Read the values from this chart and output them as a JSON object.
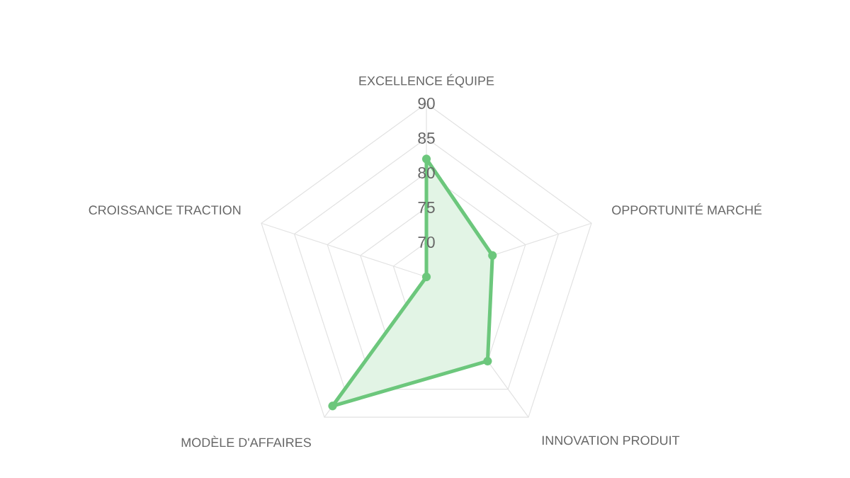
{
  "chart_data": {
    "type": "radar",
    "categories": [
      "EXCELLENCE ÉQUIPE",
      "OPPORTUNITÉ MARCHÉ",
      "INNOVATION PRODUIT",
      "MODÈLE D'AFFAIRES",
      "CROISSANCE TRACTION"
    ],
    "series": [
      {
        "color": "#6cc77c",
        "values": [
          82,
          75,
          80,
          88,
          65
        ]
      }
    ],
    "ylim": [
      65,
      90
    ],
    "yticks": [
      70,
      75,
      80,
      85,
      90
    ],
    "grid": true,
    "marker": "circle",
    "line_style": "solid"
  }
}
